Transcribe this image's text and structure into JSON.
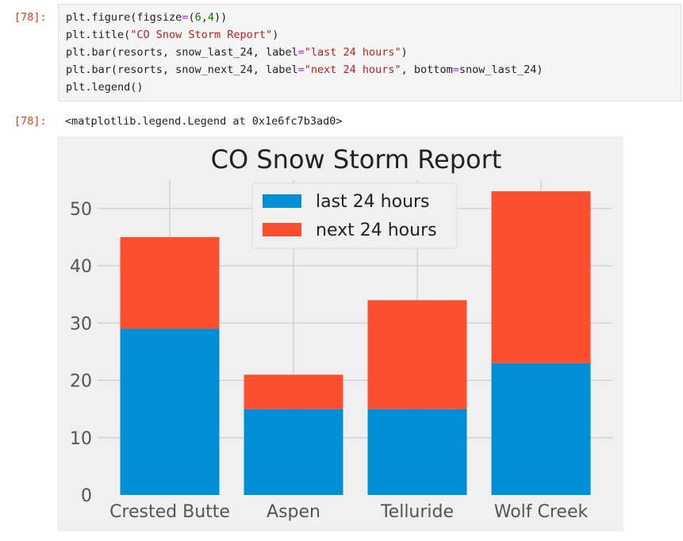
{
  "input_cell": {
    "prompt": "[78]:",
    "lines": [
      [
        {
          "t": "plt.figure(figsize",
          "c": ""
        },
        {
          "t": "=",
          "c": "eq"
        },
        {
          "t": "(",
          "c": ""
        },
        {
          "t": "6",
          "c": "num"
        },
        {
          "t": ",",
          "c": ""
        },
        {
          "t": "4",
          "c": "num"
        },
        {
          "t": "))",
          "c": ""
        }
      ],
      [
        {
          "t": "plt.title(",
          "c": ""
        },
        {
          "t": "\"CO Snow Storm Report\"",
          "c": "str"
        },
        {
          "t": ")",
          "c": ""
        }
      ],
      [
        {
          "t": "plt.bar(resorts, snow_last_24, label",
          "c": ""
        },
        {
          "t": "=",
          "c": "eq"
        },
        {
          "t": "\"last 24 hours\"",
          "c": "str"
        },
        {
          "t": ")",
          "c": ""
        }
      ],
      [
        {
          "t": "plt.bar(resorts, snow_next_24, label",
          "c": ""
        },
        {
          "t": "=",
          "c": "eq"
        },
        {
          "t": "\"next 24 hours\"",
          "c": "str"
        },
        {
          "t": ", bottom",
          "c": ""
        },
        {
          "t": "=",
          "c": "eq"
        },
        {
          "t": "snow_last_24)",
          "c": ""
        }
      ],
      [
        {
          "t": "plt.legend()",
          "c": ""
        }
      ]
    ]
  },
  "output_cell": {
    "prompt": "[78]:",
    "text": "<matplotlib.legend.Legend at 0x1e6fc7b3ad0>"
  },
  "colors": {
    "prompt": "#D84315",
    "plot_bg": "#F0F0F0",
    "grid": "#CBCBCB",
    "series_1": "#008FD5",
    "series_2": "#FC4F30"
  },
  "chart_data": {
    "type": "bar",
    "stacked": true,
    "title": "CO Snow Storm Report",
    "xlabel": "",
    "ylabel": "",
    "categories": [
      "Crested Butte",
      "Aspen",
      "Telluride",
      "Wolf Creek"
    ],
    "series": [
      {
        "name": "last 24 hours",
        "values": [
          29,
          15,
          15,
          23
        ],
        "color": "#008FD5"
      },
      {
        "name": "next 24 hours",
        "values": [
          16,
          6,
          19,
          30
        ],
        "color": "#FC4F30"
      }
    ],
    "yticks": [
      0,
      10,
      20,
      30,
      40,
      50
    ],
    "ylim": [
      0,
      55.65
    ],
    "grid": true,
    "legend_position": "upper center"
  }
}
